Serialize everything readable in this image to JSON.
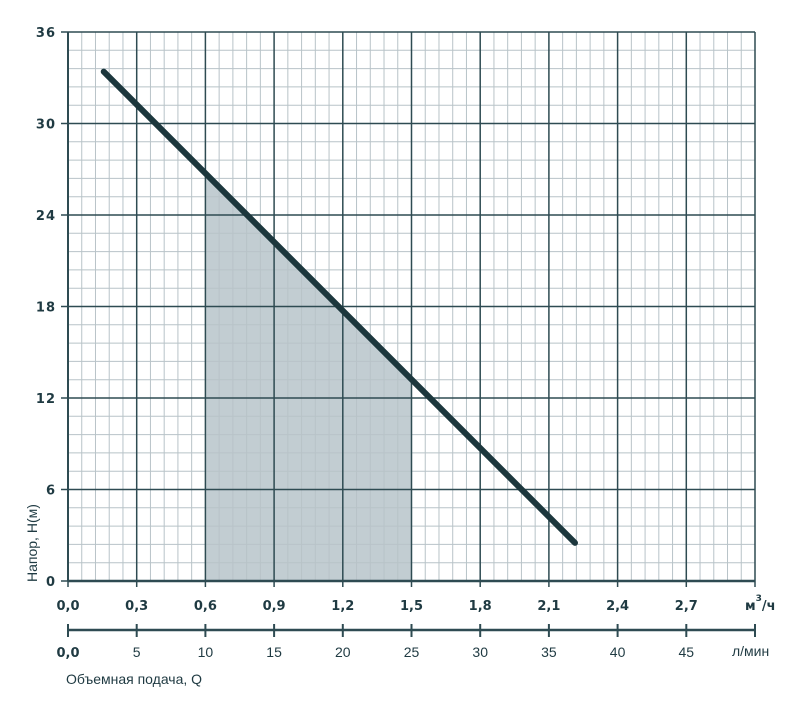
{
  "chart_data": {
    "type": "line",
    "ylabel": "Напор, Н(м)",
    "xlabel": "Объемная подача, Q",
    "ylim": [
      0,
      36
    ],
    "y_ticks": [
      "0",
      "6",
      "12",
      "18",
      "24",
      "30",
      "36"
    ],
    "xlim": [
      0,
      50
    ],
    "x_unit_primary": "л/мин",
    "x_ticks_primary": [
      "0,0",
      "5",
      "10",
      "15",
      "20",
      "25",
      "30",
      "35",
      "40",
      "45"
    ],
    "x_unit_secondary": "м³/ч",
    "x_unit_secondary_base": "м",
    "x_unit_secondary_sup": "3",
    "x_unit_secondary_tail": "/ч",
    "x_ticks_secondary": [
      "0,0",
      "0,3",
      "0,6",
      "0,9",
      "1,2",
      "1,5",
      "1,8",
      "2,1",
      "2,4",
      "2,7"
    ],
    "grid": true,
    "series": [
      {
        "x_units": "л/мин",
        "points": [
          [
            2.6,
            33.4
          ],
          [
            36.9,
            2.5
          ]
        ]
      }
    ],
    "shaded_range_x": [
      10,
      25
    ],
    "colors": {
      "line": "#1c373d",
      "major_grid": "#2e4b52",
      "minor_grid": "#b8c3c8",
      "shade": "#c2cdd2",
      "text": "#1f3a42"
    }
  }
}
